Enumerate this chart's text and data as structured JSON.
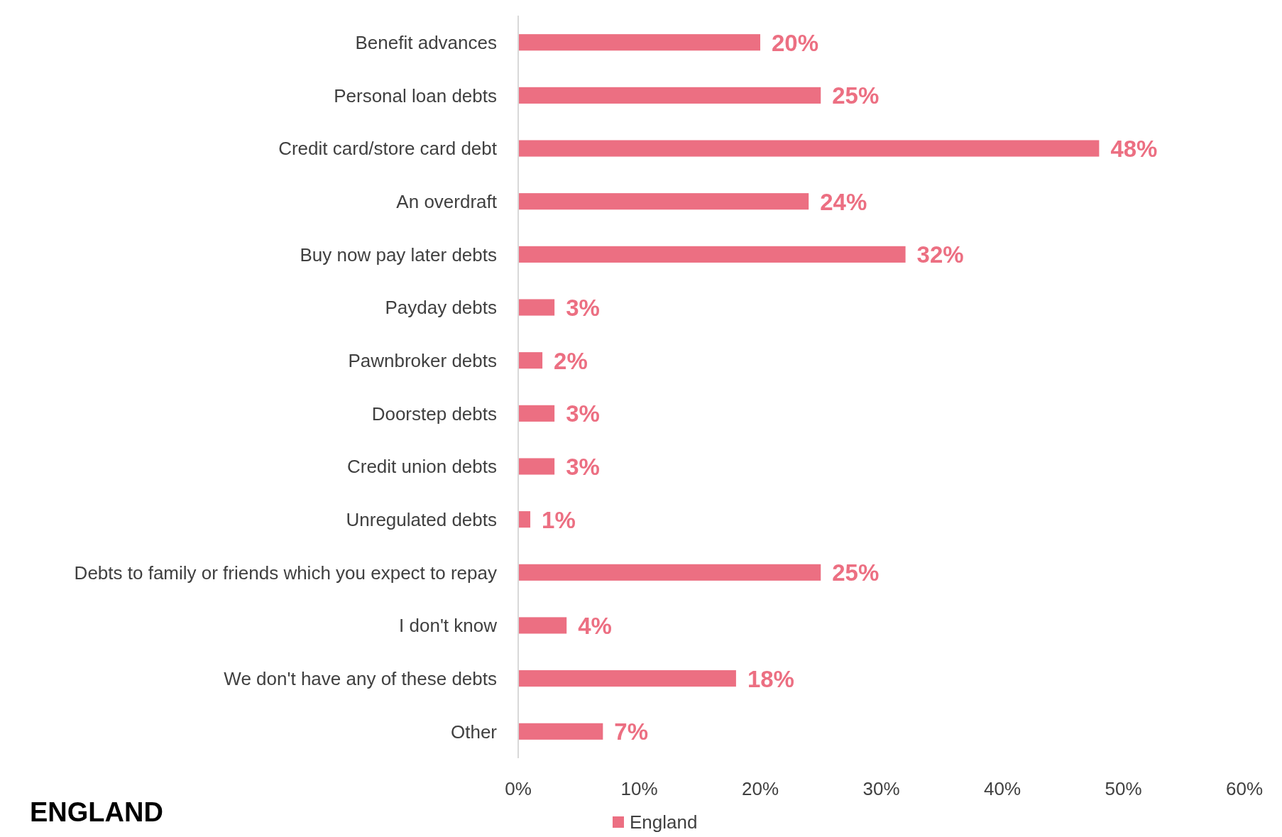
{
  "chart_data": {
    "type": "bar",
    "orientation": "horizontal",
    "title": "ENGLAND",
    "categories": [
      "Benefit advances",
      "Personal loan debts",
      "Credit card/store card debt",
      "An overdraft",
      "Buy now pay later debts",
      "Payday debts",
      "Pawnbroker debts",
      "Doorstep debts",
      "Credit union debts",
      "Unregulated debts",
      "Debts to family or friends which you expect to repay",
      "I don't know",
      "We don't have any of these debts",
      "Other"
    ],
    "series": [
      {
        "name": "England",
        "color": "#ec6f82",
        "values": [
          20,
          25,
          48,
          24,
          32,
          3,
          2,
          3,
          3,
          1,
          25,
          4,
          18,
          7
        ],
        "value_labels": [
          "20%",
          "25%",
          "48%",
          "24%",
          "32%",
          "3%",
          "2%",
          "3%",
          "3%",
          "1%",
          "25%",
          "4%",
          "18%",
          "7%"
        ]
      }
    ],
    "xlim": [
      0,
      60
    ],
    "xticks": [
      {
        "value": 0,
        "label": "0%"
      },
      {
        "value": 10,
        "label": "10%"
      },
      {
        "value": 20,
        "label": "20%"
      },
      {
        "value": 30,
        "label": "30%"
      },
      {
        "value": 40,
        "label": "40%"
      },
      {
        "value": 50,
        "label": "50%"
      },
      {
        "value": 60,
        "label": "60%"
      }
    ],
    "grid": false,
    "legend": "bottom"
  }
}
